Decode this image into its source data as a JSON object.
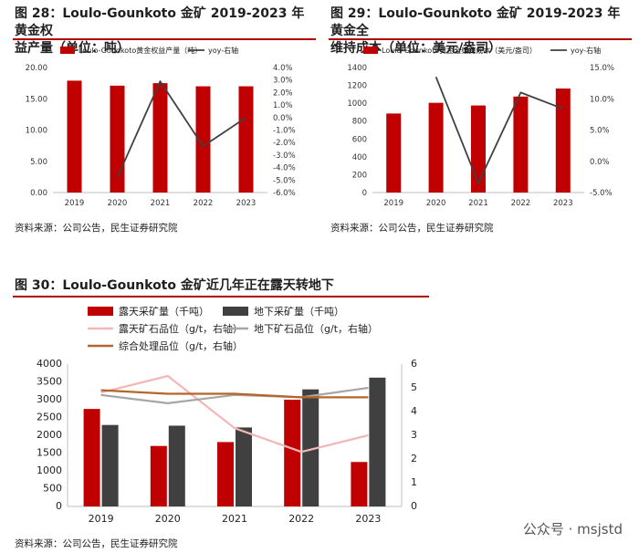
{
  "figures": [
    {
      "title_line1": "图 28：Loulo-Gounkoto 金矿 2019-2023 年黄金权",
      "title_line2": "益产量（单位：吨）",
      "source": "资料来源：公司公告，民生证券研究院"
    },
    {
      "title_line1": "图 29：Loulo-Gounkoto 金矿 2019-2023 年黄金全",
      "title_line2": "维持成本（单位：美元/盎司）",
      "source": "资料来源：公司公告，民生证券研究院"
    },
    {
      "title_line1": "图 30：Loulo-Gounkoto 金矿近几年正在露天转地下",
      "title_line2": "",
      "source": "资料来源：公司公告，民生证券研究院"
    }
  ],
  "watermark": "公众号 · msjstd",
  "colors": {
    "red": "#c00000",
    "dark": "#404040",
    "line": "#404040",
    "pink": "#f4b6b6",
    "gray": "#a6a6a6",
    "brown": "#b5652a"
  },
  "chart_data": [
    {
      "type": "bar",
      "categories": [
        "2019",
        "2020",
        "2021",
        "2022",
        "2023"
      ],
      "series": [
        {
          "name": "Loulo-Gounkoto黄金权益产量（吨）",
          "type": "bar",
          "axis": "left",
          "values": [
            17.9,
            17.1,
            17.5,
            17.0,
            17.0
          ]
        },
        {
          "name": "yoy-右轴",
          "type": "line",
          "axis": "right",
          "values": [
            null,
            -4.8,
            2.9,
            -2.3,
            0.0
          ]
        }
      ],
      "ylim": [
        0,
        20
      ],
      "yticks": [
        "0.00",
        "5.00",
        "10.00",
        "15.00",
        "20.00"
      ],
      "y2lim": [
        -6,
        4
      ],
      "y2ticks": [
        "-6.0%",
        "-5.0%",
        "-4.0%",
        "-3.0%",
        "-2.0%",
        "-1.0%",
        "0.0%",
        "1.0%",
        "2.0%",
        "3.0%",
        "4.0%"
      ],
      "legend": "top"
    },
    {
      "type": "bar",
      "categories": [
        "2019",
        "2020",
        "2021",
        "2022",
        "2023"
      ],
      "series": [
        {
          "name": "Loulo-Gounkoto黄金全维持成本（美元/盎司）",
          "type": "bar",
          "axis": "left",
          "values": [
            885,
            1005,
            975,
            1075,
            1165
          ]
        },
        {
          "name": "yoy-右轴",
          "type": "line",
          "axis": "right",
          "values": [
            null,
            13.5,
            -3.5,
            11.0,
            8.4
          ]
        }
      ],
      "ylim": [
        0,
        1400
      ],
      "yticks": [
        "0",
        "200",
        "400",
        "600",
        "800",
        "1000",
        "1200",
        "1400"
      ],
      "y2lim": [
        -5,
        15
      ],
      "y2ticks": [
        "-5.0%",
        "0.0%",
        "5.0%",
        "10.0%",
        "15.0%"
      ],
      "legend": "top"
    },
    {
      "type": "bar",
      "categories": [
        "2019",
        "2020",
        "2021",
        "2022",
        "2023"
      ],
      "series": [
        {
          "name": "露天采矿量（千吨）",
          "type": "bar",
          "axis": "left",
          "values": [
            2740,
            1700,
            1810,
            3000,
            1250
          ]
        },
        {
          "name": "地下采矿量（千吨）",
          "type": "bar",
          "axis": "left",
          "values": [
            2290,
            2270,
            2220,
            3290,
            3620
          ]
        },
        {
          "name": "露天矿石品位（g/t，右轴）",
          "type": "line",
          "axis": "right",
          "values": [
            4.8,
            5.5,
            3.3,
            2.3,
            3.0
          ]
        },
        {
          "name": "地下矿石品位（g/t，右轴）",
          "type": "line",
          "axis": "right",
          "values": [
            4.7,
            4.35,
            4.7,
            4.6,
            5.0
          ]
        },
        {
          "name": "综合处理品位（g/t，右轴）",
          "type": "line",
          "axis": "right",
          "values": [
            4.9,
            4.75,
            4.75,
            4.6,
            4.6
          ]
        }
      ],
      "ylim": [
        0,
        4000
      ],
      "yticks": [
        "0",
        "500",
        "1000",
        "1500",
        "2000",
        "2500",
        "3000",
        "3500",
        "4000"
      ],
      "y2lim": [
        0,
        6
      ],
      "y2ticks": [
        "0",
        "1",
        "2",
        "3",
        "4",
        "5",
        "6"
      ],
      "legend": "top"
    }
  ]
}
